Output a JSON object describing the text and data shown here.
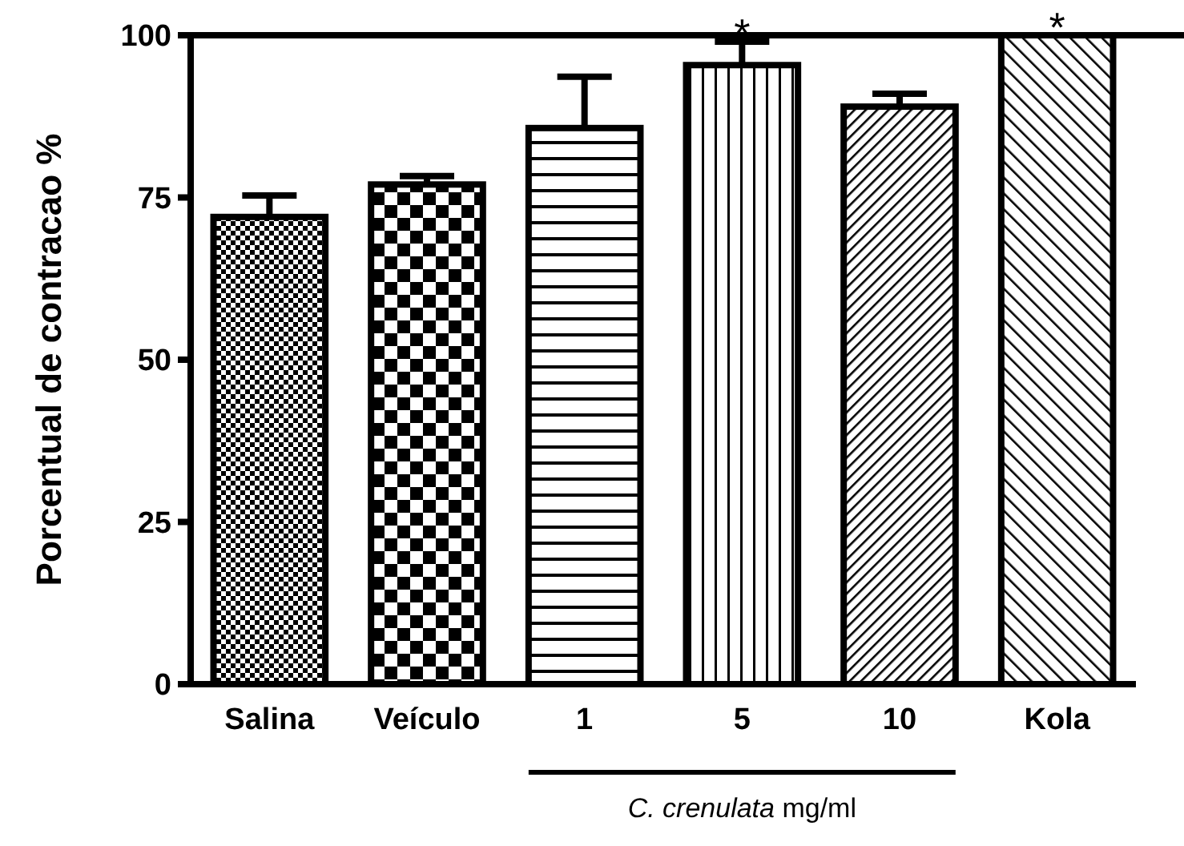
{
  "chart_data": {
    "type": "bar",
    "ylabel": "Porcentual de contracao %",
    "xlabel": "C. crenulata mg/ml",
    "categories": [
      "Salina",
      "Veículo",
      "1",
      "5",
      "10",
      "Kola"
    ],
    "values": [
      72,
      77,
      85.7,
      95.4,
      89,
      100
    ],
    "colors": [
      "#000000",
      "#000000",
      "#000000",
      "#000000",
      "#000000",
      "#000000"
    ],
    "errors": [
      [
        72,
        75.3
      ],
      [
        77,
        78.3
      ],
      [
        85.7,
        93.6
      ],
      [
        95.4,
        99
      ],
      [
        89,
        91
      ],
      null
    ],
    "ylim": [
      0,
      100
    ],
    "yticks": [
      0,
      25,
      50,
      75,
      100
    ],
    "ref_lines": [
      {
        "axis": "y",
        "value": 100
      }
    ],
    "annotations": [
      {
        "text": "*",
        "x": "5",
        "y": 99
      },
      {
        "text": "*",
        "x": "Kola",
        "y": 100
      }
    ],
    "grid": false
  }
}
